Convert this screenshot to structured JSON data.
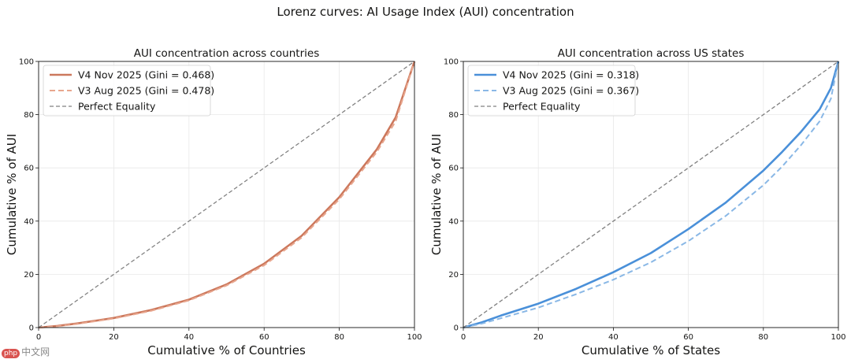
{
  "figure_title": "Lorenz curves: AI Usage Index (AUI) concentration",
  "watermark": {
    "logo": "php",
    "text": "中文网"
  },
  "chart_data": [
    {
      "type": "line",
      "title": "AUI concentration across countries",
      "xlabel": "Cumulative % of Countries",
      "ylabel": "Cumulative % of AUI",
      "xlim": [
        0,
        100
      ],
      "ylim": [
        0,
        100
      ],
      "xticks": [
        0,
        20,
        40,
        60,
        80,
        100
      ],
      "yticks": [
        0,
        20,
        40,
        60,
        80,
        100
      ],
      "grid": true,
      "legend_position": "top-left",
      "series": [
        {
          "name": "V4 Nov 2025 (Gini = 0.468)",
          "color": "#cc785c",
          "style": "solid",
          "x": [
            0,
            5,
            10,
            20,
            30,
            40,
            50,
            60,
            70,
            80,
            90,
            95,
            100
          ],
          "y": [
            0,
            0.6,
            1.5,
            3.6,
            6.6,
            10.5,
            16.2,
            24,
            34.5,
            49,
            67,
            79,
            100
          ]
        },
        {
          "name": "V3 Aug 2025 (Gini = 0.478)",
          "color": "#e8a68e",
          "style": "dashed",
          "x": [
            0,
            5,
            10,
            20,
            30,
            40,
            50,
            60,
            70,
            80,
            90,
            95,
            100
          ],
          "y": [
            0,
            0.5,
            1.3,
            3.4,
            6.3,
            10.2,
            15.8,
            23.4,
            33.8,
            48.2,
            66,
            77.5,
            100
          ]
        },
        {
          "name": "Perfect Equality",
          "color": "#808080",
          "style": "dashed",
          "x": [
            0,
            100
          ],
          "y": [
            0,
            100
          ]
        }
      ]
    },
    {
      "type": "line",
      "title": "AUI concentration across US states",
      "xlabel": "Cumulative % of States",
      "ylabel": "Cumulative % of AUI",
      "xlim": [
        0,
        100
      ],
      "ylim": [
        0,
        100
      ],
      "xticks": [
        0,
        20,
        40,
        60,
        80,
        100
      ],
      "yticks": [
        0,
        20,
        40,
        60,
        80,
        100
      ],
      "grid": true,
      "legend_position": "top-left",
      "series": [
        {
          "name": "V4 Nov 2025 (Gini = 0.318)",
          "color": "#4a90d9",
          "style": "solid",
          "x": [
            0,
            5,
            10,
            20,
            30,
            40,
            50,
            60,
            70,
            80,
            85,
            90,
            95,
            98,
            100
          ],
          "y": [
            0,
            2,
            4.5,
            9,
            14.5,
            20.8,
            28,
            37,
            47,
            59,
            66,
            73.5,
            82,
            90,
            100
          ]
        },
        {
          "name": "V3 Aug 2025 (Gini = 0.367)",
          "color": "#8ab8e6",
          "style": "dashed",
          "x": [
            0,
            5,
            10,
            20,
            30,
            40,
            50,
            60,
            70,
            80,
            85,
            90,
            95,
            98,
            100
          ],
          "y": [
            0,
            1.5,
            3.5,
            7.5,
            12.5,
            18,
            24.5,
            32.5,
            42,
            53.5,
            60.5,
            68.5,
            77.5,
            86,
            100
          ]
        },
        {
          "name": "Perfect Equality",
          "color": "#808080",
          "style": "dashed",
          "x": [
            0,
            100
          ],
          "y": [
            0,
            100
          ]
        }
      ]
    }
  ]
}
